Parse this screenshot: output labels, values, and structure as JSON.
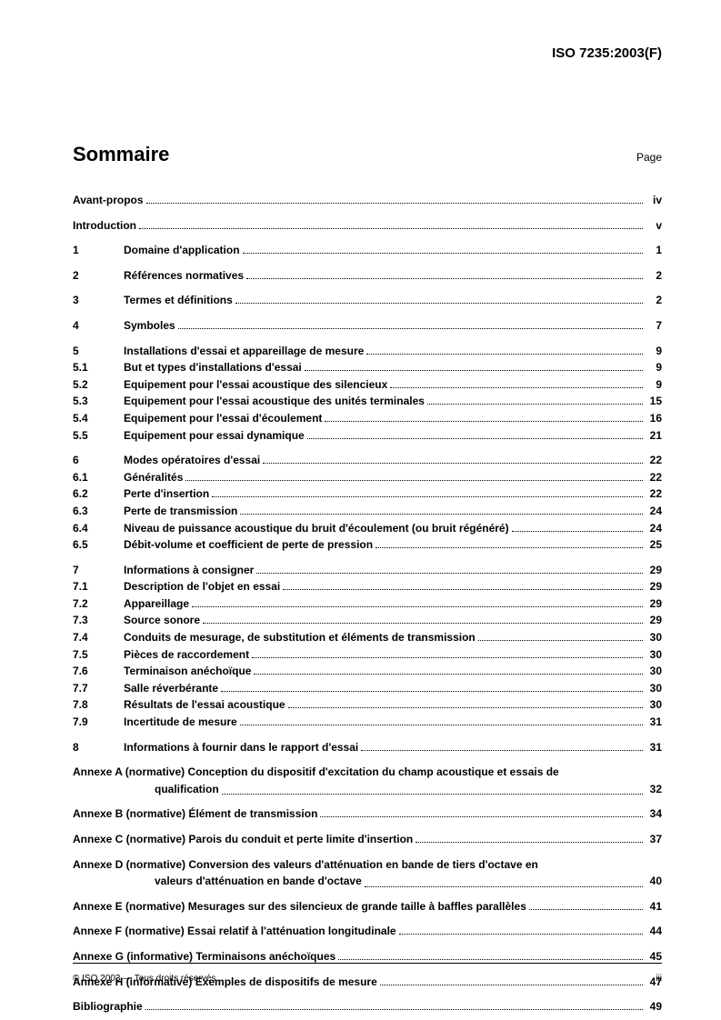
{
  "doc_id": "ISO 7235:2003(F)",
  "heading": "Sommaire",
  "page_label": "Page",
  "footer_left": "© ISO 2003 — Tous droits réservés",
  "footer_right": "iii",
  "groups": [
    {
      "items": [
        {
          "num": "",
          "title": "Avant-propos",
          "page": "iv",
          "full": true
        }
      ]
    },
    {
      "items": [
        {
          "num": "",
          "title": "Introduction",
          "page": "v",
          "full": true
        }
      ]
    },
    {
      "items": [
        {
          "num": "1",
          "title": "Domaine d'application",
          "page": "1"
        }
      ]
    },
    {
      "items": [
        {
          "num": "2",
          "title": "Références normatives",
          "page": "2"
        }
      ]
    },
    {
      "items": [
        {
          "num": "3",
          "title": "Termes et définitions",
          "page": "2"
        }
      ]
    },
    {
      "items": [
        {
          "num": "4",
          "title": "Symboles",
          "page": "7"
        }
      ]
    },
    {
      "items": [
        {
          "num": "5",
          "title": "Installations d'essai et appareillage de mesure",
          "page": "9"
        },
        {
          "num": "5.1",
          "title": "But et types d'installations d'essai",
          "page": "9"
        },
        {
          "num": "5.2",
          "title": "Equipement pour l'essai acoustique des silencieux",
          "page": "9"
        },
        {
          "num": "5.3",
          "title": "Equipement pour l'essai acoustique des unités terminales",
          "page": "15"
        },
        {
          "num": "5.4",
          "title": "Equipement pour l'essai d'écoulement",
          "page": "16"
        },
        {
          "num": "5.5",
          "title": "Equipement pour essai dynamique",
          "page": "21"
        }
      ]
    },
    {
      "items": [
        {
          "num": "6",
          "title": "Modes opératoires d'essai",
          "page": "22"
        },
        {
          "num": "6.1",
          "title": "Généralités",
          "page": "22"
        },
        {
          "num": "6.2",
          "title": "Perte d'insertion",
          "page": "22"
        },
        {
          "num": "6.3",
          "title": "Perte de transmission",
          "page": "24"
        },
        {
          "num": "6.4",
          "title": "Niveau de puissance acoustique du bruit d'écoulement (ou bruit régénéré)",
          "page": "24"
        },
        {
          "num": "6.5",
          "title": "Débit-volume et coefficient de perte de pression",
          "page": "25"
        }
      ]
    },
    {
      "items": [
        {
          "num": "7",
          "title": "Informations à consigner",
          "page": "29"
        },
        {
          "num": "7.1",
          "title": "Description de l'objet en essai",
          "page": "29"
        },
        {
          "num": "7.2",
          "title": "Appareillage",
          "page": "29"
        },
        {
          "num": "7.3",
          "title": "Source sonore",
          "page": "29"
        },
        {
          "num": "7.4",
          "title": "Conduits de mesurage, de substitution et éléments de transmission",
          "page": "30"
        },
        {
          "num": "7.5",
          "title": "Pièces de raccordement",
          "page": "30"
        },
        {
          "num": "7.6",
          "title": "Terminaison anéchoïque",
          "page": "30"
        },
        {
          "num": "7.7",
          "title": "Salle réverbérante",
          "page": "30"
        },
        {
          "num": "7.8",
          "title": "Résultats de l'essai acoustique",
          "page": "30"
        },
        {
          "num": "7.9",
          "title": "Incertitude de mesure",
          "page": "31"
        }
      ]
    },
    {
      "items": [
        {
          "num": "8",
          "title": "Informations à fournir dans le rapport d'essai",
          "page": "31"
        }
      ]
    },
    {
      "items": [
        {
          "full": true,
          "wrap": true,
          "title": "Annexe A (normative)  Conception du dispositif d'excitation du champ acoustique  et essais de",
          "title2": "qualification",
          "page": "32"
        }
      ]
    },
    {
      "items": [
        {
          "full": true,
          "title": "Annexe B (normative)  Élément de transmission",
          "page": "34"
        }
      ]
    },
    {
      "items": [
        {
          "full": true,
          "title": "Annexe C (normative)  Parois du conduit et perte limite d'insertion",
          "page": "37"
        }
      ]
    },
    {
      "items": [
        {
          "full": true,
          "wrap": true,
          "title": "Annexe D (normative)  Conversion des valeurs d'atténuation en bande de tiers d'octave  en",
          "title2": "valeurs d'atténuation en bande d'octave",
          "page": "40"
        }
      ]
    },
    {
      "items": [
        {
          "full": true,
          "title": "Annexe E (normative)  Mesurages sur des silencieux de grande taille à baffles parallèles",
          "page": "41"
        }
      ]
    },
    {
      "items": [
        {
          "full": true,
          "title": "Annexe F (normative)  Essai relatif à l'atténuation longitudinale",
          "page": "44"
        }
      ]
    },
    {
      "items": [
        {
          "full": true,
          "title": "Annexe G (informative)  Terminaisons anéchoïques",
          "page": "45"
        }
      ]
    },
    {
      "items": [
        {
          "full": true,
          "title": "Annexe H (informative)  Exemples de dispositifs de mesure",
          "page": "47"
        }
      ]
    },
    {
      "items": [
        {
          "full": true,
          "title": "Bibliographie",
          "page": "49"
        }
      ]
    }
  ]
}
